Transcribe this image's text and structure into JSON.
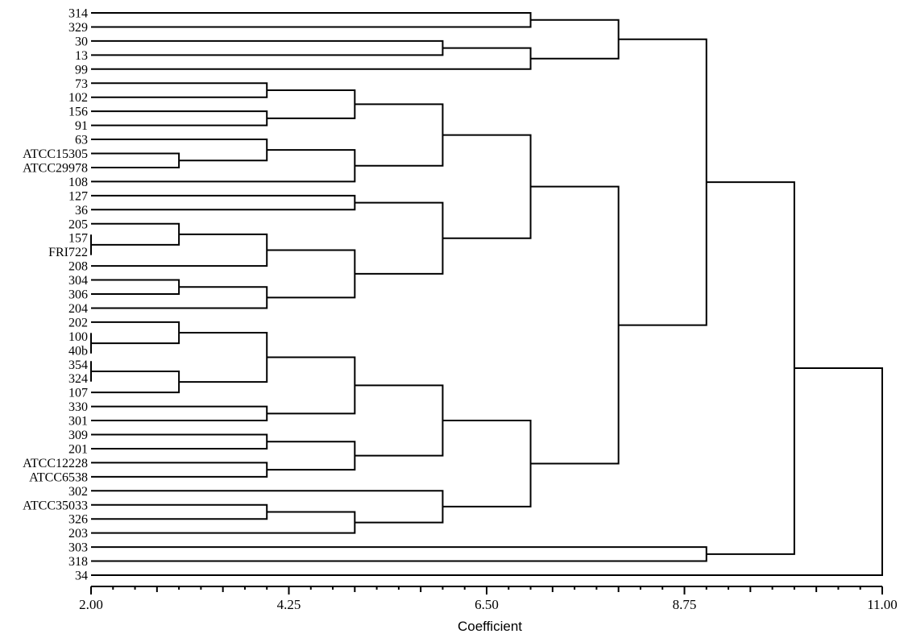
{
  "chart_data": {
    "type": "dendrogram",
    "xlabel": "Coefficient",
    "xlim": [
      2.0,
      11.0
    ],
    "ticks": [
      "2.00",
      "4.25",
      "6.50",
      "8.75",
      "11.00"
    ],
    "leaves": [
      "314",
      "329",
      "30",
      "13",
      "99",
      "73",
      "102",
      "156",
      "91",
      "63",
      "ATCC15305",
      "ATCC29978",
      "108",
      "127",
      "36",
      "205",
      "157",
      "FRI722",
      "208",
      "304",
      "306",
      "204",
      "202",
      "100",
      "40b",
      "354",
      "324",
      "107",
      "330",
      "301",
      "309",
      "201",
      "ATCC12228",
      "ATCC6538",
      "302",
      "ATCC35033",
      "326",
      "203",
      "303",
      "318",
      "34"
    ],
    "merges": [
      {
        "left": [
          16
        ],
        "right": [
          17
        ],
        "height": 2.0
      },
      {
        "left": [
          23
        ],
        "right": [
          24
        ],
        "height": 2.0
      },
      {
        "left": [
          25
        ],
        "right": [
          26
        ],
        "height": 2.0
      },
      {
        "left": [
          10
        ],
        "right": [
          11
        ],
        "height": 3.0
      },
      {
        "left": [
          15
        ],
        "right": [
          16,
          17
        ],
        "height": 3.0
      },
      {
        "left": [
          19
        ],
        "right": [
          20
        ],
        "height": 3.0
      },
      {
        "left": [
          22
        ],
        "right": [
          23,
          24
        ],
        "height": 3.0
      },
      {
        "left": [
          25,
          26
        ],
        "right": [
          27
        ],
        "height": 3.0
      },
      {
        "left": [
          5
        ],
        "right": [
          6
        ],
        "height": 4.0
      },
      {
        "left": [
          7
        ],
        "right": [
          8
        ],
        "height": 4.0
      },
      {
        "left": [
          9
        ],
        "right": [
          10,
          11
        ],
        "height": 4.0
      },
      {
        "left": [
          15,
          16,
          17
        ],
        "right": [
          18
        ],
        "height": 4.0
      },
      {
        "left": [
          19,
          20
        ],
        "right": [
          21
        ],
        "height": 4.0
      },
      {
        "left": [
          22,
          23,
          24
        ],
        "right": [
          25,
          26,
          27
        ],
        "height": 4.0
      },
      {
        "left": [
          28
        ],
        "right": [
          29
        ],
        "height": 4.0
      },
      {
        "left": [
          30
        ],
        "right": [
          31
        ],
        "height": 4.0
      },
      {
        "left": [
          32
        ],
        "right": [
          33
        ],
        "height": 4.0
      },
      {
        "left": [
          35
        ],
        "right": [
          36
        ],
        "height": 4.0
      },
      {
        "left": [
          5,
          6
        ],
        "right": [
          7,
          8
        ],
        "height": 5.0
      },
      {
        "left": [
          9,
          10,
          11
        ],
        "right": [
          12
        ],
        "height": 5.0
      },
      {
        "left": [
          13
        ],
        "right": [
          14
        ],
        "height": 5.0
      },
      {
        "left": [
          15,
          16,
          17,
          18
        ],
        "right": [
          19,
          20,
          21
        ],
        "height": 5.0
      },
      {
        "left": [
          22,
          23,
          24,
          25,
          26,
          27
        ],
        "right": [
          28,
          29
        ],
        "height": 5.0
      },
      {
        "left": [
          30,
          31
        ],
        "right": [
          32,
          33
        ],
        "height": 5.0
      },
      {
        "left": [
          35,
          36
        ],
        "right": [
          37
        ],
        "height": 5.0
      },
      {
        "left": [
          2
        ],
        "right": [
          3
        ],
        "height": 6.0
      },
      {
        "left": [
          5,
          6,
          7,
          8
        ],
        "right": [
          9,
          10,
          11,
          12
        ],
        "height": 6.0
      },
      {
        "left": [
          13,
          14
        ],
        "right": [
          15,
          16,
          17,
          18,
          19,
          20,
          21
        ],
        "height": 6.0
      },
      {
        "left": [
          22,
          23,
          24,
          25,
          26,
          27,
          28,
          29
        ],
        "right": [
          30,
          31,
          32,
          33
        ],
        "height": 6.0
      },
      {
        "left": [
          34
        ],
        "right": [
          35,
          36,
          37
        ],
        "height": 6.0
      },
      {
        "left": [
          0
        ],
        "right": [
          1
        ],
        "height": 7.0
      },
      {
        "left": [
          2,
          3
        ],
        "right": [
          4
        ],
        "height": 7.0
      },
      {
        "left": [
          5,
          6,
          7,
          8,
          9,
          10,
          11,
          12
        ],
        "right": [
          13,
          14,
          15,
          16,
          17,
          18,
          19,
          20,
          21
        ],
        "height": 7.0
      },
      {
        "left": [
          22,
          23,
          24,
          25,
          26,
          27,
          28,
          29,
          30,
          31,
          32,
          33
        ],
        "right": [
          34,
          35,
          36,
          37
        ],
        "height": 7.0
      },
      {
        "left": [
          0,
          1
        ],
        "right": [
          2,
          3,
          4
        ],
        "height": 8.0
      },
      {
        "left": [
          5,
          6,
          7,
          8,
          9,
          10,
          11,
          12,
          13,
          14,
          15,
          16,
          17,
          18,
          19,
          20,
          21
        ],
        "right": [
          22,
          23,
          24,
          25,
          26,
          27,
          28,
          29,
          30,
          31,
          32,
          33,
          34,
          35,
          36,
          37
        ],
        "height": 8.0
      },
      {
        "left": [
          38
        ],
        "right": [
          39
        ],
        "height": 9.0
      },
      {
        "left": [
          0,
          1,
          2,
          3,
          4
        ],
        "right": [
          5,
          6,
          7,
          8,
          9,
          10,
          11,
          12,
          13,
          14,
          15,
          16,
          17,
          18,
          19,
          20,
          21,
          22,
          23,
          24,
          25,
          26,
          27,
          28,
          29,
          30,
          31,
          32,
          33,
          34,
          35,
          36,
          37
        ],
        "height": 9.0
      },
      {
        "left": [
          0,
          1,
          2,
          3,
          4,
          5,
          6,
          7,
          8,
          9,
          10,
          11,
          12,
          13,
          14,
          15,
          16,
          17,
          18,
          19,
          20,
          21,
          22,
          23,
          24,
          25,
          26,
          27,
          28,
          29,
          30,
          31,
          32,
          33,
          34,
          35,
          36,
          37
        ],
        "right": [
          38,
          39
        ],
        "height": 10.0
      },
      {
        "left": [
          0,
          1,
          2,
          3,
          4,
          5,
          6,
          7,
          8,
          9,
          10,
          11,
          12,
          13,
          14,
          15,
          16,
          17,
          18,
          19,
          20,
          21,
          22,
          23,
          24,
          25,
          26,
          27,
          28,
          29,
          30,
          31,
          32,
          33,
          34,
          35,
          36,
          37,
          38,
          39
        ],
        "right": [
          40
        ],
        "height": 11.0
      }
    ]
  }
}
